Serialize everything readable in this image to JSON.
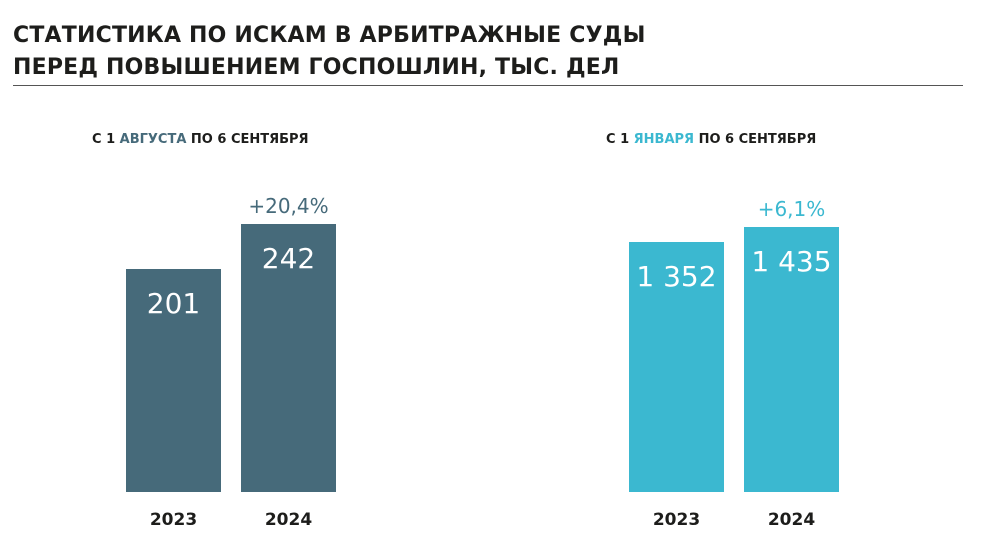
{
  "title_line1": "СТАТИСТИКА ПО ИСКАМ В АРБИТРАЖНЫЕ СУДЫ",
  "title_line2": "ПЕРЕД ПОВЫШЕНИЕМ ГОСПОШЛИН, ТЫС. ДЕЛ",
  "chart_data": [
    {
      "type": "bar",
      "subtitle_pre": "С 1 ",
      "subtitle_hl": "АВГУСТА",
      "subtitle_post": " ПО 6 СЕНТЯБРЯ",
      "color": "#466a7a",
      "categories": [
        "2023",
        "2024"
      ],
      "values": [
        201,
        242
      ],
      "labels": [
        "201",
        "242"
      ],
      "change": "+20,4%"
    },
    {
      "type": "bar",
      "subtitle_pre": "С 1 ",
      "subtitle_hl": "ЯНВАРЯ",
      "subtitle_post": " ПО 6 СЕНТЯБРЯ",
      "color": "#3bb8d0",
      "categories": [
        "2023",
        "2024"
      ],
      "values": [
        1352,
        1435
      ],
      "labels": [
        "1 352",
        "1 435"
      ],
      "change": "+6,1%"
    }
  ]
}
